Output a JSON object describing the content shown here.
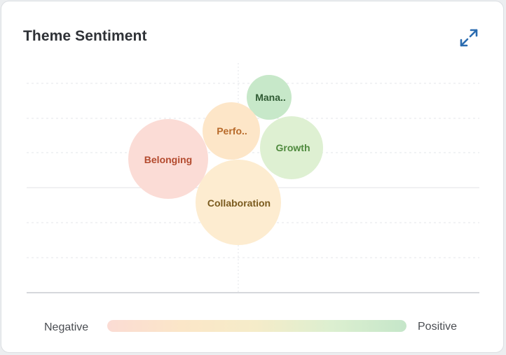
{
  "card": {
    "title": "Theme Sentiment",
    "expand_icon": "expand-arrows-icon"
  },
  "colors": {
    "accent": "#2b6cb0",
    "gradient": [
      "#fbdcd4",
      "#fbe6c8",
      "#f5ecc9",
      "#dcefd0",
      "#c5e6c9"
    ]
  },
  "legend": {
    "negative_label": "Negative",
    "positive_label": "Positive"
  },
  "chart_data": {
    "type": "bubble",
    "bubbles": [
      {
        "label": "Mana..",
        "fill": "#c7e8c9",
        "text_color": "#2f5a33",
        "font_size": 14
      },
      {
        "label": "Perfo..",
        "fill": "#fde6c8",
        "text_color": "#b86a2a",
        "font_size": 14
      },
      {
        "label": "Growth",
        "fill": "#def0d2",
        "text_color": "#4f8a3e",
        "font_size": 14
      },
      {
        "label": "Belonging",
        "fill": "#fbdcd6",
        "text_color": "#b34a2e",
        "font_size": 14
      },
      {
        "label": "Collaboration",
        "fill": "#fdecd0",
        "text_color": "#7a5a1e",
        "font_size": 14
      }
    ],
    "grid": true,
    "legend_position": "bottom"
  }
}
